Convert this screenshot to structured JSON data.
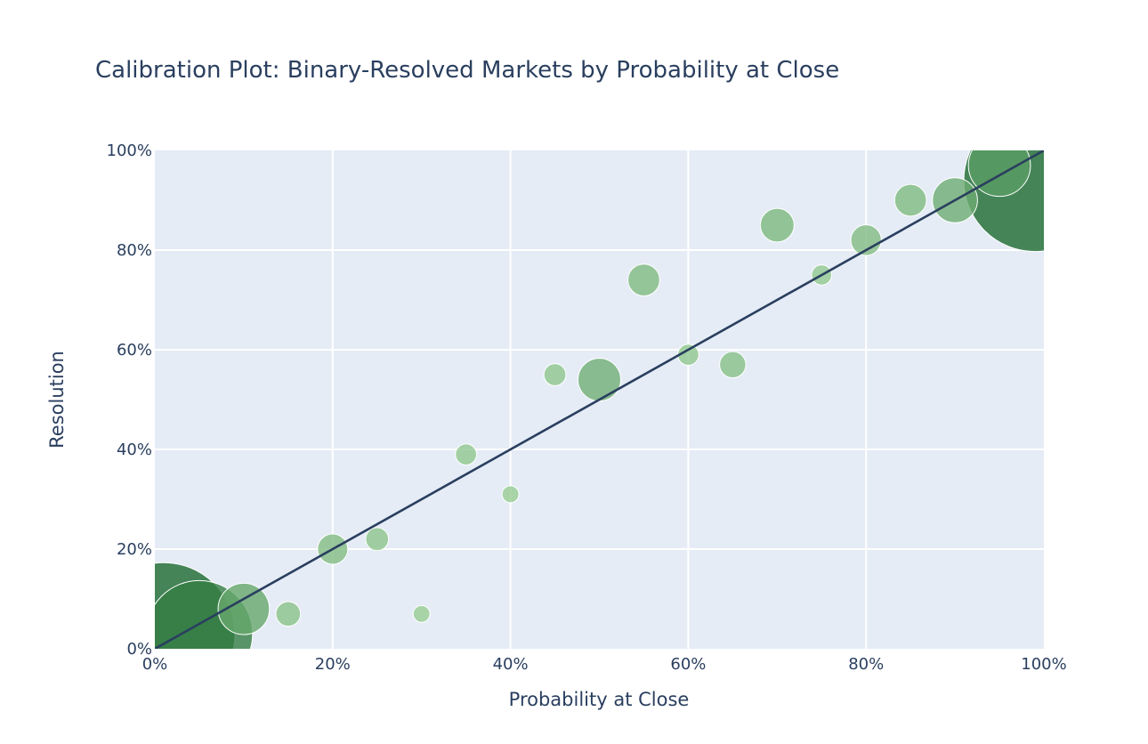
{
  "chart_data": {
    "type": "scatter",
    "title": "Calibration Plot: Binary-Resolved Markets by Probability at Close",
    "xlabel": "Probability at Close",
    "ylabel": "Resolution",
    "xlim": [
      0,
      1
    ],
    "ylim": [
      0,
      1
    ],
    "x_ticks": [
      0,
      0.2,
      0.4,
      0.6,
      0.8,
      1.0
    ],
    "x_tick_labels": [
      "0%",
      "20%",
      "40%",
      "60%",
      "80%",
      "100%"
    ],
    "y_ticks": [
      0,
      0.2,
      0.4,
      0.6,
      0.8,
      1.0
    ],
    "y_tick_labels": [
      "0%",
      "20%",
      "40%",
      "60%",
      "80%",
      "100%"
    ],
    "grid": true,
    "legend": "none",
    "colors": {
      "plot_background": "#e5ecf6",
      "gridline": "#ffffff",
      "reference_line": "#2a3f5f",
      "bubble_low": "#a8dba2",
      "bubble_high": "#1b6a30"
    },
    "reference_line": {
      "x": [
        0,
        1
      ],
      "y": [
        0,
        1
      ]
    },
    "points": [
      {
        "x": 0.01,
        "y": 0.03,
        "count": 1000
      },
      {
        "x": 0.05,
        "y": 0.03,
        "count": 560
      },
      {
        "x": 0.1,
        "y": 0.08,
        "count": 130
      },
      {
        "x": 0.15,
        "y": 0.07,
        "count": 30
      },
      {
        "x": 0.2,
        "y": 0.2,
        "count": 45
      },
      {
        "x": 0.25,
        "y": 0.22,
        "count": 26
      },
      {
        "x": 0.3,
        "y": 0.07,
        "count": 14
      },
      {
        "x": 0.35,
        "y": 0.39,
        "count": 22
      },
      {
        "x": 0.4,
        "y": 0.31,
        "count": 14
      },
      {
        "x": 0.45,
        "y": 0.55,
        "count": 24
      },
      {
        "x": 0.5,
        "y": 0.54,
        "count": 90
      },
      {
        "x": 0.55,
        "y": 0.74,
        "count": 50
      },
      {
        "x": 0.6,
        "y": 0.59,
        "count": 22
      },
      {
        "x": 0.65,
        "y": 0.57,
        "count": 34
      },
      {
        "x": 0.7,
        "y": 0.85,
        "count": 56
      },
      {
        "x": 0.75,
        "y": 0.75,
        "count": 20
      },
      {
        "x": 0.8,
        "y": 0.82,
        "count": 46
      },
      {
        "x": 0.85,
        "y": 0.9,
        "count": 50
      },
      {
        "x": 0.9,
        "y": 0.9,
        "count": 100
      },
      {
        "x": 0.95,
        "y": 0.97,
        "count": 190
      },
      {
        "x": 0.99,
        "y": 0.94,
        "count": 1000
      }
    ]
  }
}
